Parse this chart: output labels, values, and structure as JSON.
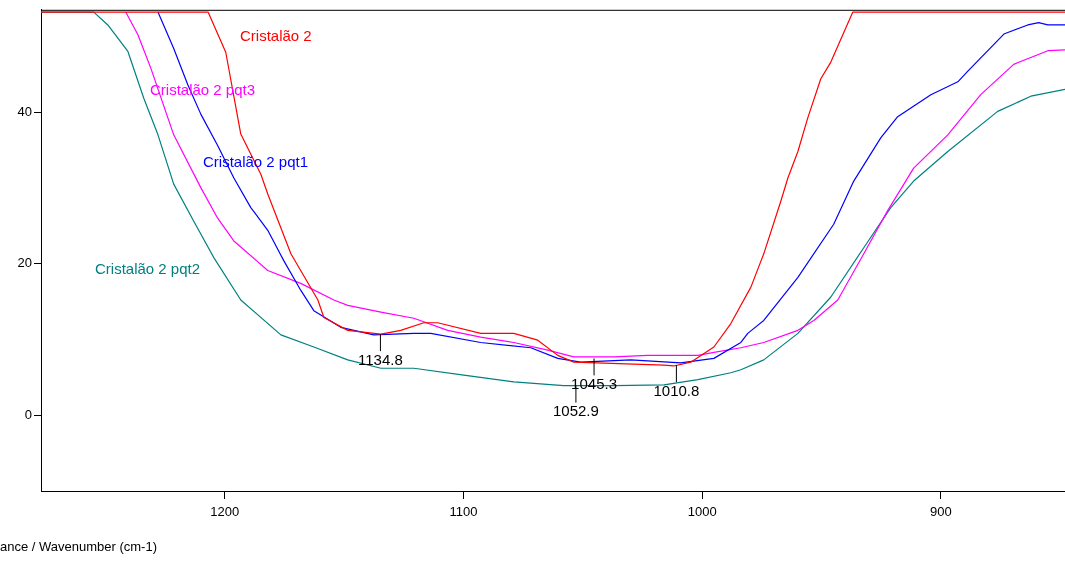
{
  "chart_data": {
    "type": "line",
    "xlabel": "ance / Wavenumber (cm-1)",
    "xlim": [
      1277,
      848
    ],
    "xticks": [
      1200,
      1100,
      1000,
      900
    ],
    "ylim": [
      -10,
      53.5
    ],
    "yticks": [
      0,
      20,
      40
    ],
    "grid": false,
    "legend": false,
    "marker": "none",
    "line_style": "solid",
    "series": [
      {
        "name": "Cristalão 2",
        "color": "#ff0000",
        "x": [
          1277,
          1207,
          1199.6,
          1193.3,
          1184.9,
          1182,
          1172.3,
          1161,
          1158.5,
          1148.5,
          1134.6,
          1126.3,
          1116.6,
          1110.8,
          1092.8,
          1078.9,
          1068.9,
          1060.5,
          1053.8,
          1016,
          1011.9,
          1004.8,
          995.1,
          988,
          979.6,
          974.2,
          967,
          964.1,
          959.9,
          955.8,
          950.3,
          946.1,
          936.9,
          848
        ],
        "values": [
          53.2,
          53.2,
          47.9,
          37.1,
          31.8,
          29.2,
          21.3,
          15.2,
          12.9,
          11.2,
          10.7,
          11.2,
          12.2,
          12.2,
          10.8,
          10.8,
          9.9,
          7.9,
          7,
          6.6,
          6.5,
          7,
          9,
          12.1,
          16.9,
          21.3,
          28.3,
          31.3,
          34.8,
          39.2,
          44.4,
          46.6,
          53.2,
          53.2
        ]
      },
      {
        "name": "Cristalão 2 pqt1",
        "color": "#0000ff",
        "x": [
          1228,
          1221.4,
          1215.5,
          1210,
          1203,
          1196.2,
          1189.1,
          1182,
          1175.3,
          1168.2,
          1162.7,
          1151.4,
          1137.6,
          1120.8,
          1113.7,
          1092.8,
          1071.8,
          1060.5,
          1050.9,
          1029.9,
          1009,
          995.1,
          983.8,
          980.9,
          974.2,
          959.9,
          944.9,
          936.5,
          925.2,
          918.1,
          904.2,
          892.9,
          888.7,
          873.6,
          863.6,
          859,
          855.2,
          848
        ],
        "values": [
          53.2,
          48.4,
          43.6,
          39.7,
          35.6,
          31.3,
          27.4,
          24.4,
          20.4,
          16.5,
          13.8,
          11.6,
          10.6,
          10.8,
          10.8,
          9.6,
          8.9,
          7.5,
          7,
          7.3,
          6.9,
          7.5,
          9.6,
          10.8,
          12.5,
          18.2,
          25.2,
          30.9,
          36.6,
          39.4,
          42.3,
          44,
          45.4,
          50.3,
          51.5,
          51.8,
          51.5,
          51.5
        ]
      },
      {
        "name": "Cristalão 2 pqt3",
        "color": "#ff00ff",
        "x": [
          1241.5,
          1236.4,
          1231,
          1221.4,
          1210,
          1203,
          1196.2,
          1182,
          1168.2,
          1154.3,
          1148.5,
          1134.6,
          1120.8,
          1106.6,
          1092.8,
          1078.9,
          1064.7,
          1053.8,
          1037,
          1022.8,
          1001.8,
          995.1,
          983.8,
          974.2,
          959.9,
          953.2,
          943.2,
          932.3,
          922.3,
          911.4,
          897.1,
          883.3,
          869.5,
          855.2,
          848
        ],
        "values": [
          53.2,
          50.2,
          45.8,
          37,
          30,
          26,
          23,
          19.1,
          17.4,
          15.2,
          14.5,
          13.6,
          12.8,
          11.2,
          10.3,
          9.6,
          8.6,
          7.7,
          7.7,
          7.9,
          7.9,
          8.3,
          8.9,
          9.6,
          11.2,
          12.5,
          15.2,
          21.3,
          27,
          32.6,
          37,
          42.3,
          46.3,
          48.1,
          48.2
        ]
      },
      {
        "name": "Cristalão 2 pqt2",
        "color": "#008080",
        "x": [
          1277,
          1254.9,
          1249,
          1240.6,
          1233.9,
          1228,
          1221.4,
          1213,
          1204.6,
          1193.3,
          1176.5,
          1162.7,
          1148.5,
          1134.6,
          1120.8,
          1099.9,
          1078.9,
          1058,
          1037,
          1016,
          1001.8,
          988,
          983.8,
          974.2,
          959.9,
          946.1,
          932.3,
          921,
          911.4,
          897.1,
          876.2,
          862.3,
          848
        ],
        "values": [
          53.2,
          53.2,
          51.5,
          48,
          41.8,
          37,
          30.5,
          25.6,
          20.8,
          15.2,
          10.6,
          9,
          7.3,
          6.2,
          6.2,
          5.3,
          4.4,
          3.9,
          3.9,
          4,
          4.7,
          5.6,
          6,
          7.3,
          10.8,
          15.6,
          22.1,
          27.4,
          30.9,
          34.8,
          40.1,
          42.1,
          43
        ]
      }
    ],
    "annotations": [
      {
        "text": "1134.8",
        "x": 1134.8,
        "y": 10.7
      },
      {
        "text": "1045.3",
        "x": 1045.3,
        "y": 7.5
      },
      {
        "text": "1010.8",
        "x": 1010.8,
        "y": 6.6
      },
      {
        "text": "1052.9",
        "x": 1052.9,
        "y": 3.9
      }
    ]
  }
}
